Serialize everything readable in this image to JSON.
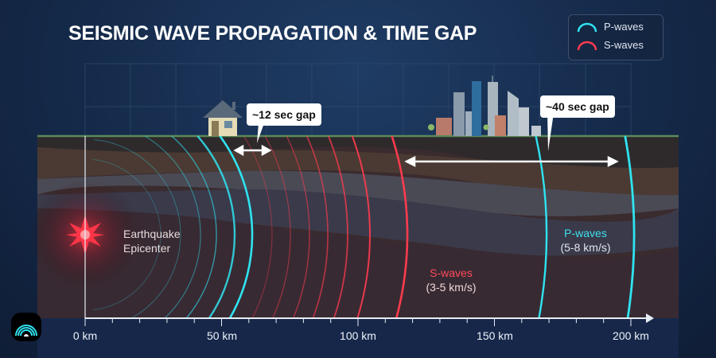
{
  "title": "SEISMIC WAVE PROPAGATION & TIME GAP",
  "legend": [
    {
      "label": "P-waves",
      "color": "#2fe3f0"
    },
    {
      "label": "S-waves",
      "color": "#ff3b4e"
    }
  ],
  "callouts": {
    "near": "~12 sec gap",
    "far": "~40 sec gap"
  },
  "epicenter": {
    "line1": "Earthquake",
    "line2": "Epicenter"
  },
  "p_label": {
    "name": "P-waves",
    "speed": "(5-8 km/s)"
  },
  "s_label": {
    "name": "S-waves",
    "speed": "(3-5 km/s)"
  },
  "axis": {
    "ticks": [
      "0 km",
      "50 km",
      "100 km",
      "150 km",
      "200 km"
    ],
    "min_km": 0,
    "max_km": 200
  }
}
